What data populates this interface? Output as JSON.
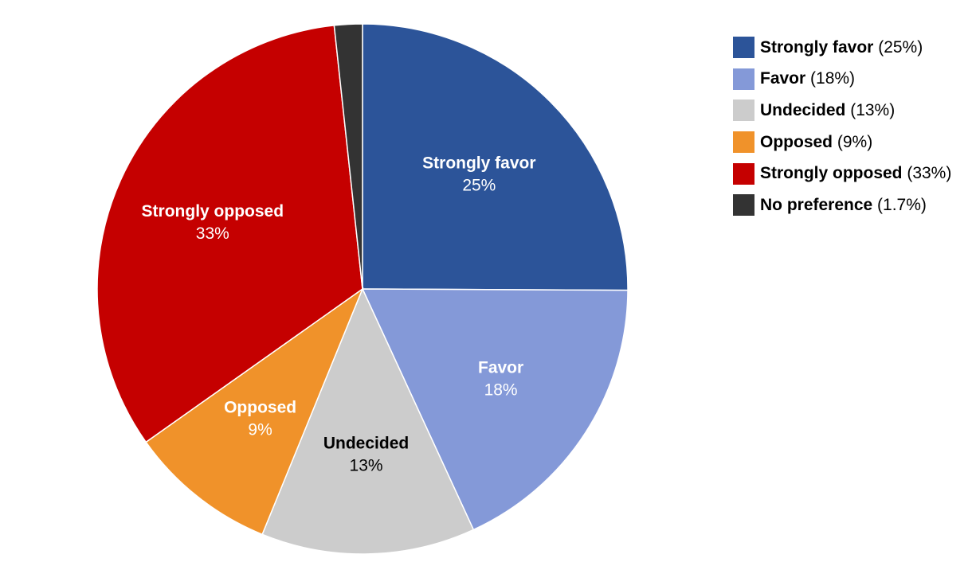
{
  "chart_data": {
    "type": "pie",
    "title": "",
    "legend_position": "top-right",
    "slices": [
      {
        "label": "Strongly favor",
        "value": 25,
        "display": "25%",
        "legend_value": "25%",
        "color": "#2c5499",
        "label_color": "#ffffff"
      },
      {
        "label": "Favor",
        "value": 18,
        "display": "18%",
        "legend_value": "18%",
        "color": "#8499d8",
        "label_color": "#ffffff"
      },
      {
        "label": "Undecided",
        "value": 13,
        "display": "13%",
        "legend_value": "13%",
        "color": "#cccccc",
        "label_color": "#000000"
      },
      {
        "label": "Opposed",
        "value": 9,
        "display": "9%",
        "legend_value": "9%",
        "color": "#f0922a",
        "label_color": "#ffffff"
      },
      {
        "label": "Strongly opposed",
        "value": 33,
        "display": "33%",
        "legend_value": "33%",
        "color": "#c50000",
        "label_color": "#ffffff"
      },
      {
        "label": "No preference",
        "value": 1.7,
        "display": "",
        "legend_value": "1.7%",
        "color": "#333333",
        "label_color": "#ffffff"
      }
    ]
  }
}
